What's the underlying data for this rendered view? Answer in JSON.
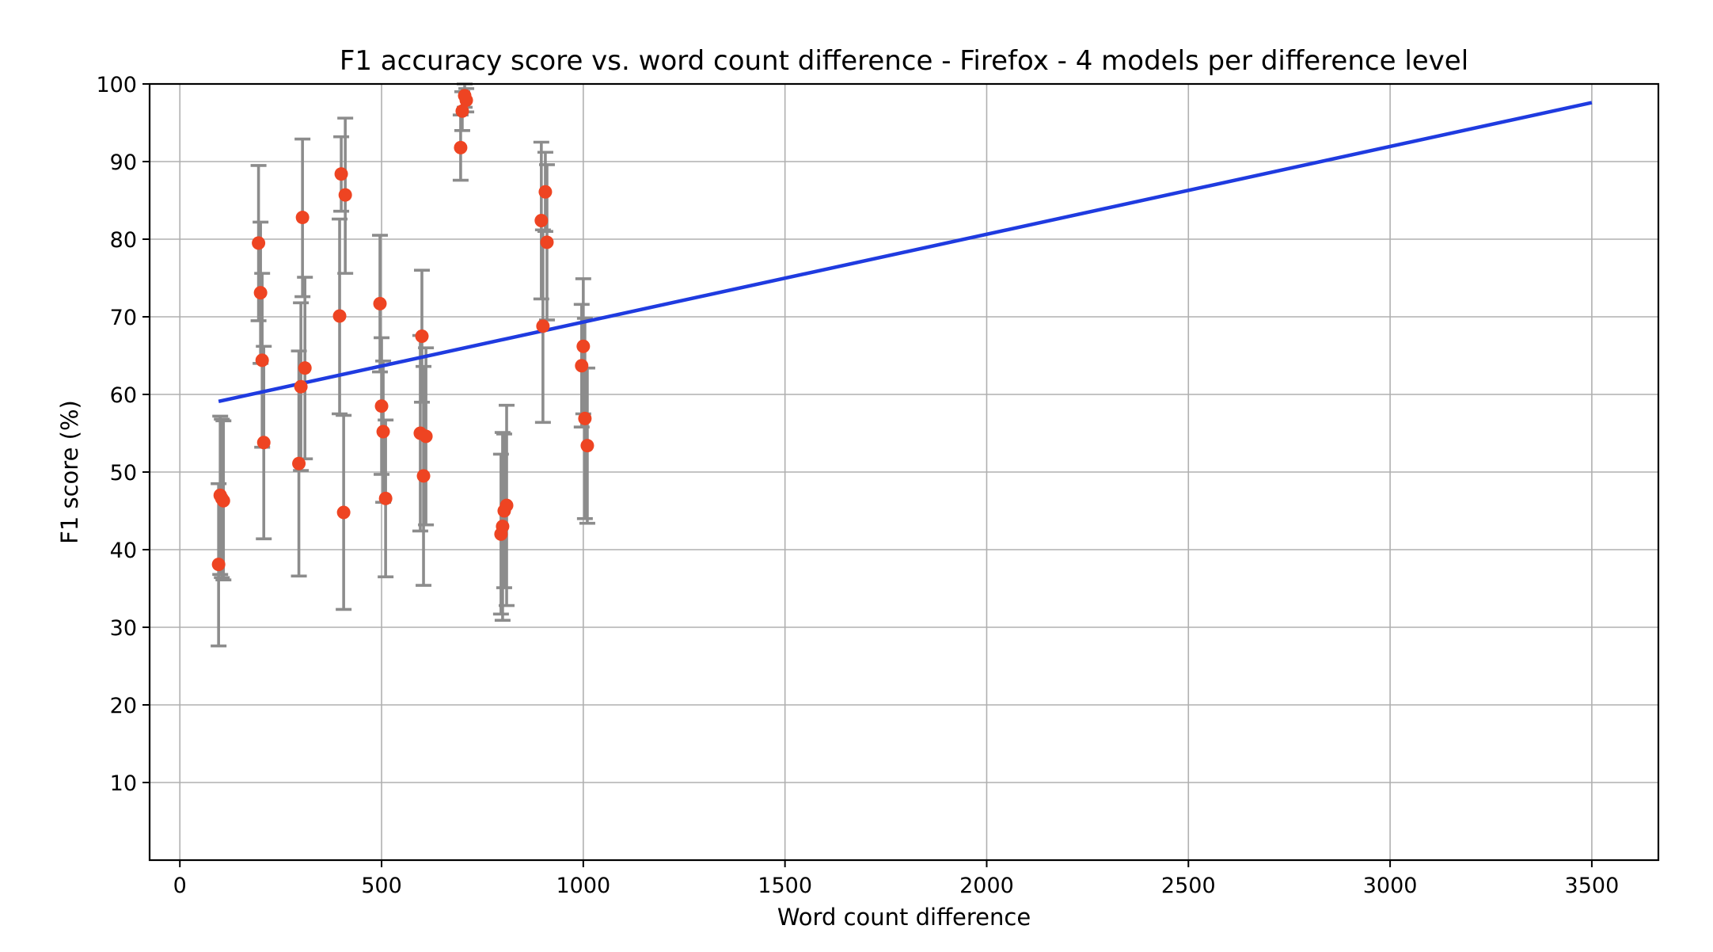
{
  "chart_data": {
    "type": "scatter",
    "title": "F1 accuracy score vs. word count difference - Firefox - 4 models per difference level",
    "xlabel": "Word count difference",
    "ylabel": "F1 score (%)",
    "xlim": [
      -75,
      3665
    ],
    "ylim": [
      0,
      100
    ],
    "x_ticks": [
      0,
      500,
      1000,
      1500,
      2000,
      2500,
      3000,
      3500
    ],
    "y_ticks": [
      10,
      20,
      30,
      40,
      50,
      60,
      70,
      80,
      90,
      100
    ],
    "grid": true,
    "colors": {
      "points": "#ee4422",
      "error_bars": "#8c8c8c",
      "trend_line": "#1f3be0"
    },
    "points": [
      {
        "x": 96,
        "y": 38.1,
        "lo": 27.6,
        "hi": 48.5
      },
      {
        "x": 100,
        "y": 47.0,
        "lo": 36.8,
        "hi": 57.2
      },
      {
        "x": 104,
        "y": 46.6,
        "lo": 36.4,
        "hi": 56.8
      },
      {
        "x": 108,
        "y": 46.3,
        "lo": 36.1,
        "hi": 56.6
      },
      {
        "x": 195,
        "y": 79.5,
        "lo": 69.5,
        "hi": 89.5
      },
      {
        "x": 200,
        "y": 73.1,
        "lo": 64.0,
        "hi": 82.2
      },
      {
        "x": 204,
        "y": 64.4,
        "lo": 53.2,
        "hi": 75.6
      },
      {
        "x": 208,
        "y": 53.8,
        "lo": 41.4,
        "hi": 66.2
      },
      {
        "x": 295,
        "y": 51.1,
        "lo": 36.6,
        "hi": 65.6
      },
      {
        "x": 300,
        "y": 61.0,
        "lo": 50.2,
        "hi": 71.8
      },
      {
        "x": 304,
        "y": 82.8,
        "lo": 72.6,
        "hi": 92.9
      },
      {
        "x": 310,
        "y": 63.4,
        "lo": 51.7,
        "hi": 75.1
      },
      {
        "x": 396,
        "y": 70.1,
        "lo": 57.5,
        "hi": 82.6
      },
      {
        "x": 400,
        "y": 88.4,
        "lo": 83.6,
        "hi": 93.2
      },
      {
        "x": 406,
        "y": 44.8,
        "lo": 32.3,
        "hi": 57.3
      },
      {
        "x": 410,
        "y": 85.7,
        "lo": 75.6,
        "hi": 95.6
      },
      {
        "x": 496,
        "y": 71.7,
        "lo": 62.9,
        "hi": 80.5
      },
      {
        "x": 500,
        "y": 58.5,
        "lo": 49.7,
        "hi": 67.3
      },
      {
        "x": 504,
        "y": 55.2,
        "lo": 46.1,
        "hi": 64.3
      },
      {
        "x": 510,
        "y": 46.6,
        "lo": 36.5,
        "hi": 56.7
      },
      {
        "x": 596,
        "y": 55.0,
        "lo": 42.4,
        "hi": 67.6
      },
      {
        "x": 600,
        "y": 67.5,
        "lo": 59.0,
        "hi": 76.0
      },
      {
        "x": 604,
        "y": 49.5,
        "lo": 35.4,
        "hi": 63.6
      },
      {
        "x": 610,
        "y": 54.6,
        "lo": 43.2,
        "hi": 66.0
      },
      {
        "x": 696,
        "y": 91.8,
        "lo": 87.6,
        "hi": 96.0
      },
      {
        "x": 700,
        "y": 96.5,
        "lo": 94.0,
        "hi": 99.0
      },
      {
        "x": 706,
        "y": 98.5,
        "lo": 97.0,
        "hi": 100.0
      },
      {
        "x": 710,
        "y": 97.9,
        "lo": 96.4,
        "hi": 99.4
      },
      {
        "x": 796,
        "y": 42.0,
        "lo": 31.7,
        "hi": 52.3
      },
      {
        "x": 800,
        "y": 43.0,
        "lo": 30.9,
        "hi": 55.1
      },
      {
        "x": 804,
        "y": 45.0,
        "lo": 35.1,
        "hi": 54.9
      },
      {
        "x": 810,
        "y": 45.7,
        "lo": 32.8,
        "hi": 58.6
      },
      {
        "x": 896,
        "y": 82.4,
        "lo": 72.3,
        "hi": 92.5
      },
      {
        "x": 900,
        "y": 68.8,
        "lo": 56.4,
        "hi": 81.2
      },
      {
        "x": 906,
        "y": 86.1,
        "lo": 81.0,
        "hi": 91.2
      },
      {
        "x": 910,
        "y": 79.6,
        "lo": 69.6,
        "hi": 89.6
      },
      {
        "x": 996,
        "y": 63.7,
        "lo": 55.8,
        "hi": 71.6
      },
      {
        "x": 1000,
        "y": 66.2,
        "lo": 57.5,
        "hi": 74.9
      },
      {
        "x": 1004,
        "y": 56.9,
        "lo": 44.0,
        "hi": 69.8
      },
      {
        "x": 1010,
        "y": 53.4,
        "lo": 43.4,
        "hi": 63.4
      }
    ],
    "trend_line": [
      {
        "x": 96,
        "y": 59.1
      },
      {
        "x": 3500,
        "y": 97.6
      }
    ]
  }
}
